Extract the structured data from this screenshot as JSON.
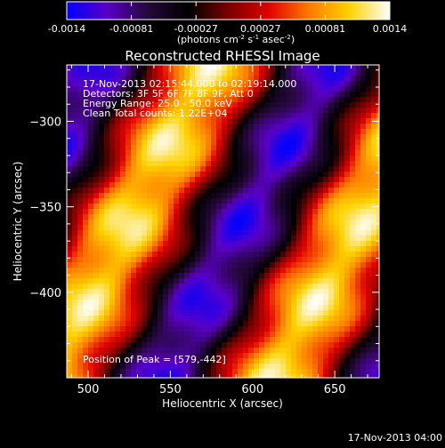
{
  "colorbar": {
    "ticks": [
      "-0.0014",
      "-0.00081",
      "-0.00027",
      "0.00027",
      "0.00081",
      "0.0014"
    ],
    "unit_parts": [
      "(photons cm",
      "-2",
      " s",
      "-1",
      " asec",
      "-2",
      ")"
    ]
  },
  "annotations": {
    "time_range": "17-Nov-2013 02:15:44.000 to 02:19:14.000",
    "detectors": "Detectors: 3F 5F 6F 7F 8F 9F, Att 0",
    "energy_range": "Energy Range: 25.0 - 50.0 keV",
    "clean": "Clean    Total counts: 1.22E+04",
    "peak": "Position of Peak = [579,-442]"
  },
  "footer_timestamp": "17-Nov-2013 04:00",
  "colors": {
    "colormap": [
      "#0000ff",
      "#5a00c8",
      "#25083a",
      "#000000",
      "#7a0000",
      "#e00000",
      "#ff7a00",
      "#ffd200",
      "#ffffff"
    ]
  },
  "chart_data": {
    "type": "heatmap",
    "title": "Reconstructed RHESSI Image",
    "xlabel": "Heliocentric X (arcsec)",
    "ylabel": "Heliocentric Y (arcsec)",
    "xlim": [
      487,
      677
    ],
    "ylim": [
      -450,
      -267
    ],
    "x_ticks": [
      500,
      550,
      600,
      650
    ],
    "y_ticks": [
      -300,
      -350,
      -400
    ],
    "color_range": [
      -0.0014,
      0.0014
    ],
    "peak": [
      579,
      -442
    ],
    "grid": false,
    "legend": "colorbar-top"
  }
}
